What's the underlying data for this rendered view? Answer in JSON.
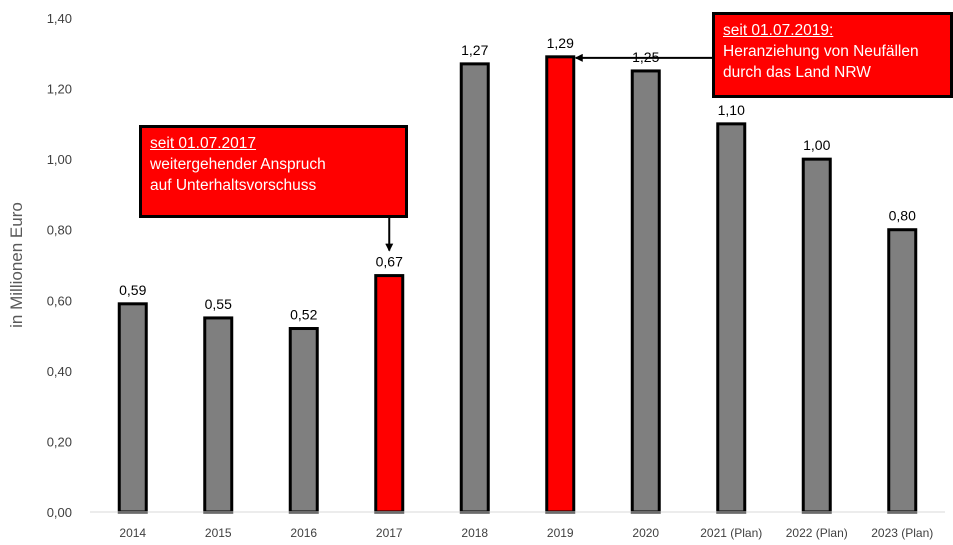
{
  "chart_data": {
    "type": "bar",
    "ylabel": "in Millionen Euro",
    "ylim": [
      0,
      1.4
    ],
    "yticks": [
      "0,00",
      "0,20",
      "0,40",
      "0,60",
      "0,80",
      "1,00",
      "1,20",
      "1,40"
    ],
    "categories": [
      "2014",
      "2015",
      "2016",
      "2017",
      "2018",
      "2019",
      "2020",
      "2021 (Plan)",
      "2022 (Plan)",
      "2023 (Plan)"
    ],
    "values": [
      0.59,
      0.55,
      0.52,
      0.67,
      1.27,
      1.29,
      1.25,
      1.1,
      1.0,
      0.8
    ],
    "value_labels": [
      "0,59",
      "0,55",
      "0,52",
      "0,67",
      "1,27",
      "1,29",
      "1,25",
      "1,10",
      "1,00",
      "0,80"
    ],
    "highlighted": [
      "2017",
      "2019"
    ],
    "colors": {
      "bar": "#7f7f7f",
      "highlight": "#ff0000",
      "outline": "#000000",
      "axis": "#d9d9d9"
    },
    "annotations": [
      {
        "target": "2017",
        "heading": "seit 01.07.2017",
        "lines": [
          "weitergehender Anspruch",
          "auf Unterhaltsvorschuss"
        ]
      },
      {
        "target": "2019",
        "heading": "seit 01.07.2019:",
        "lines": [
          "Heranziehung von Neufällen",
          "durch das Land NRW"
        ]
      }
    ]
  }
}
